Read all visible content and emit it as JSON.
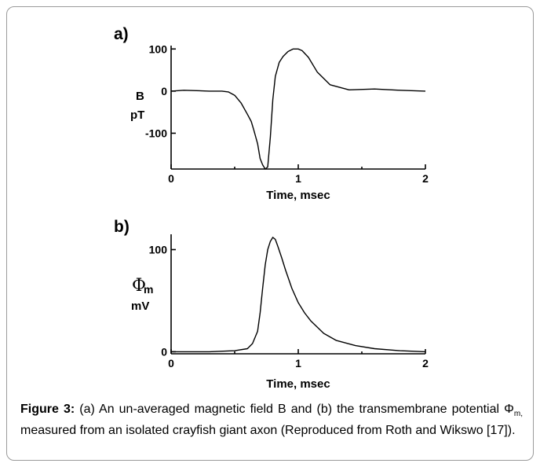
{
  "chart_data": [
    {
      "panel": "a)",
      "type": "line",
      "xlabel": "Time, msec",
      "ylabel": [
        "B",
        "pT"
      ],
      "xlim": [
        0,
        2
      ],
      "ylim": [
        -185,
        108
      ],
      "xticks": [
        "0",
        "1",
        "2"
      ],
      "yticks": [
        "100",
        "0",
        "-100"
      ],
      "series": [
        {
          "x": [
            0.0,
            0.1,
            0.2,
            0.3,
            0.4,
            0.45,
            0.5,
            0.55,
            0.6,
            0.63,
            0.65,
            0.68,
            0.7,
            0.72,
            0.74,
            0.76,
            0.78,
            0.8,
            0.82,
            0.85,
            0.88,
            0.92,
            0.96,
            1.0,
            1.03,
            1.08,
            1.15,
            1.25,
            1.4,
            1.6,
            1.8,
            2.0
          ],
          "y": [
            0,
            2,
            1,
            0,
            0,
            -2,
            -10,
            -28,
            -55,
            -72,
            -92,
            -125,
            -160,
            -175,
            -185,
            -180,
            -110,
            -20,
            35,
            68,
            82,
            94,
            100,
            100,
            96,
            80,
            45,
            15,
            3,
            5,
            2,
            0
          ]
        }
      ]
    },
    {
      "panel": "b)",
      "type": "line",
      "xlabel": "Time, msec",
      "ylabel": [
        "Φ",
        "m",
        "mV"
      ],
      "xlim": [
        0,
        2
      ],
      "ylim": [
        -2,
        115
      ],
      "xticks": [
        "0",
        "1",
        "2"
      ],
      "yticks": [
        "100",
        "0"
      ],
      "series": [
        {
          "x": [
            0.0,
            0.3,
            0.5,
            0.6,
            0.64,
            0.68,
            0.7,
            0.72,
            0.74,
            0.76,
            0.78,
            0.8,
            0.82,
            0.84,
            0.87,
            0.9,
            0.95,
            1.0,
            1.05,
            1.1,
            1.2,
            1.3,
            1.45,
            1.6,
            1.8,
            2.0
          ],
          "y": [
            0,
            0,
            1,
            3,
            8,
            20,
            38,
            62,
            85,
            100,
            108,
            112,
            110,
            103,
            92,
            80,
            62,
            48,
            38,
            30,
            18,
            11,
            6,
            3,
            1,
            0
          ]
        }
      ]
    }
  ],
  "caption": {
    "label": "Figure 3:",
    "text_1": " (a) An un-averaged magnetic field B and (b) the transmembrane potential Φ",
    "sub": "m,",
    "text_2": " measured from an isolated crayfish giant axon (Reproduced from Roth and Wikswo [17])."
  }
}
